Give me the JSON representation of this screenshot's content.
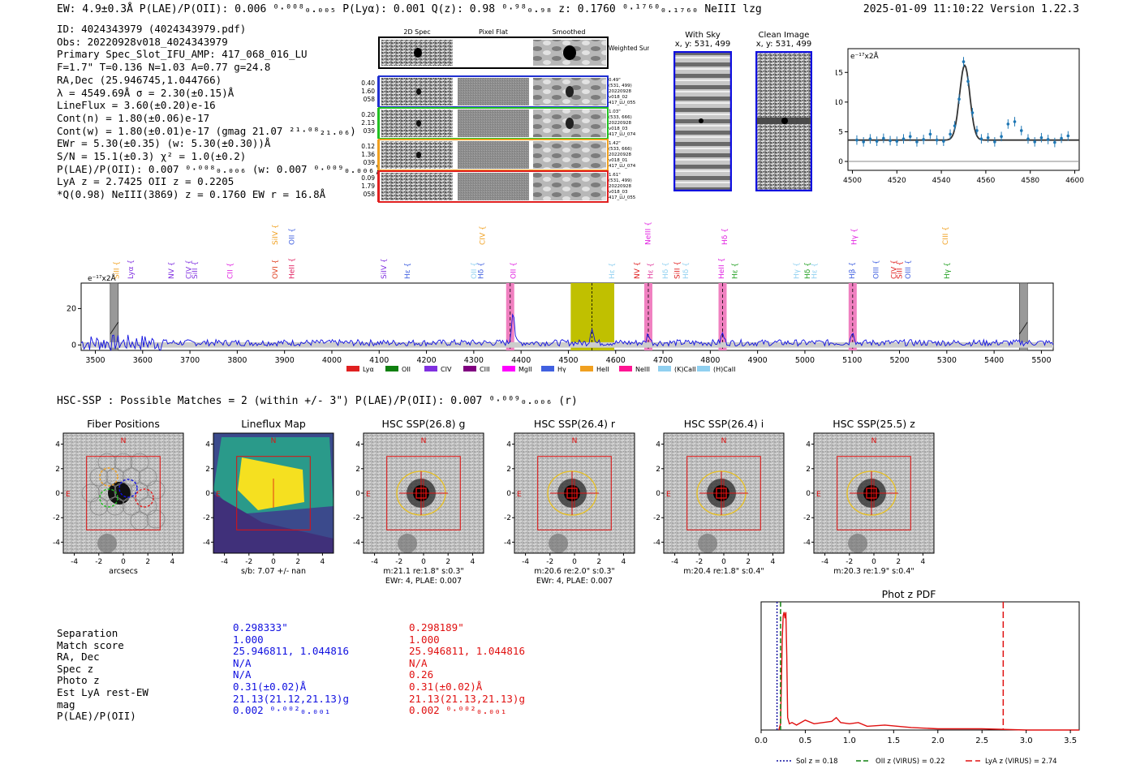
{
  "header": {
    "left": "EW: 4.9±0.3Å  P(LAE)/P(OII): 0.006 ⁰·⁰⁰⁸₀.₀₀₅  P(Lyα): 0.001  Q(z): 0.98 ⁰·⁹⁸₀.₉₈  z: 0.1760 ⁰·¹⁷⁶⁰₀.₁₇₆₀ NeIII  lzg",
    "right": "2025-01-09 11:10:22  Version 1.22.3"
  },
  "info": [
    "ID: 4024343979 (4024343979.pdf)",
    "Obs: 20220928v018_4024343979",
    "Primary Spec_Slot_IFU_AMP: 417_068_016_LU",
    "F=1.7\"  T=0.136  N=1.03  A=0.77  g=24.8",
    "RA,Dec (25.946745,1.044766)",
    "λ = 4549.69Å  σ = 2.30(±0.15)Å",
    "LineFlux = 3.60(±0.20)e-16",
    "Cont(n) = 1.80(±0.06)e-17",
    "Cont(w) = 1.80(±0.01)e-17 (gmag 21.07 ²¹·⁰⁸₂₁.₀₆)",
    "EWr = 5.30(±0.35) (w: 5.30(±0.30))Å",
    "S/N = 15.1(±0.3)  χ² = 1.0(±0.2)",
    "P(LAE)/P(OII): 0.007 ⁰·⁰⁰⁸₀.₀₀₆ (w: 0.007 ⁰·⁰⁰⁹₀.₀₀₆)",
    "LyA z = 2.7425  OII z = 0.2205",
    "*Q(0.98) NeIII(3869) z = 0.1760  EW r = 16.8Å"
  ],
  "cutouts": {
    "headers": [
      "2D Spec",
      "Pixel Flat",
      "Smoothed"
    ],
    "weighted_label": "Weighted Sum",
    "rows": [
      {
        "stats": [
          "0.40",
          "1.60",
          "058"
        ],
        "meta": [
          "0.49\"",
          "(531, 499)",
          "20220928",
          "v018_02",
          "417_LU_055"
        ],
        "color": "#2030d0"
      },
      {
        "stats": [
          "0.20",
          "2.13",
          "039"
        ],
        "meta": [
          "1.03\"",
          "(533, 666)",
          "20220928",
          "v018_03",
          "417_LU_074"
        ],
        "color": "#22c022"
      },
      {
        "stats": [
          "0.12",
          "1.36",
          "039"
        ],
        "meta": [
          "1.42\"",
          "(533, 666)",
          "20220928",
          "v018_01",
          "417_LU_074"
        ],
        "color": "#f0a020"
      },
      {
        "stats": [
          "0.09",
          "1.79",
          "058"
        ],
        "meta": [
          "1.61\"",
          "(531, 499)",
          "20220928",
          "v018_03",
          "417_LU_055"
        ],
        "color": "#e02020"
      }
    ]
  },
  "sky": {
    "with_sky_title": "With Sky",
    "with_sky_coords": "x, y: 531, 499",
    "clean_title": "Clean Image",
    "clean_coords": "x, y: 531, 499"
  },
  "zoom_chart": {
    "type": "line",
    "title": "",
    "ylabel": "e⁻¹⁷x2Å",
    "xlim": [
      4498,
      4602
    ],
    "ylim": [
      -1.5,
      19
    ],
    "xticks": [
      4500,
      4520,
      4540,
      4560,
      4580,
      4600
    ],
    "yticks": [
      0,
      5,
      10,
      15
    ],
    "data_x": [
      4502,
      4505,
      4508,
      4511,
      4514,
      4517,
      4520,
      4523,
      4526,
      4529,
      4532,
      4535,
      4538,
      4541,
      4544,
      4546,
      4548,
      4550,
      4552,
      4554,
      4556,
      4558,
      4561,
      4564,
      4567,
      4570,
      4573,
      4576,
      4579,
      4582,
      4585,
      4588,
      4591,
      4594,
      4597
    ],
    "data_y": [
      3.6,
      3.3,
      3.8,
      3.4,
      3.9,
      3.5,
      3.4,
      3.8,
      4.2,
      3.3,
      3.7,
      4.6,
      3.6,
      3.4,
      4.6,
      6.0,
      10.5,
      16.8,
      13.5,
      8.2,
      5.2,
      3.8,
      4.0,
      3.3,
      4.2,
      6.3,
      6.7,
      5.2,
      3.8,
      3.3,
      4.0,
      3.7,
      3.2,
      3.9,
      4.3
    ],
    "fit_continuum": 3.6,
    "fit_peak": 16.2,
    "fit_center": 4550.5,
    "fit_sigma": 2.3
  },
  "spectrum": {
    "type": "line",
    "ylabel": "e⁻¹⁷x2Å",
    "xlim": [
      3470,
      5525
    ],
    "ylim": [
      -3,
      34
    ],
    "xticks": [
      3500,
      3600,
      3700,
      3800,
      3900,
      4000,
      4100,
      4200,
      4300,
      4400,
      4500,
      4600,
      4700,
      4800,
      4900,
      5000,
      5100,
      5200,
      5300,
      5400,
      5500
    ],
    "yticks": [
      0,
      20
    ],
    "peaks": [
      {
        "x": 4383,
        "h": 18
      },
      {
        "x": 4550,
        "h": 9
      },
      {
        "x": 4669,
        "h": 5
      },
      {
        "x": 4826,
        "h": 5
      },
      {
        "x": 5101,
        "h": 7
      }
    ],
    "highlight_bands": [
      4377,
      4669,
      4826,
      5101
    ],
    "yellow_band": [
      4505,
      4597
    ],
    "hatched_bands": [
      3540,
      5462
    ],
    "line_labels": [
      {
        "x": 3545,
        "t": "SiII",
        "c": "#f0a020",
        "row": 2
      },
      {
        "x": 3575,
        "t": "Lyα",
        "c": "#8030e0",
        "row": 2
      },
      {
        "x": 3660,
        "t": "NV",
        "c": "#8030e0",
        "row": 2
      },
      {
        "x": 3697,
        "t": "CIV",
        "c": "#8030e0",
        "row": 2
      },
      {
        "x": 3710,
        "t": "SiII",
        "c": "#8030e0",
        "row": 2
      },
      {
        "x": 3785,
        "t": "CII",
        "c": "#e020e0",
        "row": 2
      },
      {
        "x": 3880,
        "t": "OVI",
        "c": "#e04020",
        "row": 2
      },
      {
        "x": 3880,
        "t": "SiIV",
        "c": "#f0a020",
        "row": 1
      },
      {
        "x": 3915,
        "t": "HeII",
        "c": "#e02060",
        "row": 2
      },
      {
        "x": 3915,
        "t": "OII",
        "c": "#4060e0",
        "row": 1
      },
      {
        "x": 4110,
        "t": "SiIV",
        "c": "#8030e0",
        "row": 2
      },
      {
        "x": 4160,
        "t": "Hε",
        "c": "#4060e0",
        "row": 2
      },
      {
        "x": 4300,
        "t": "OII",
        "c": "#90d0f0",
        "row": 2
      },
      {
        "x": 4315,
        "t": "Hδ",
        "c": "#4060e0",
        "row": 2
      },
      {
        "x": 4318,
        "t": "CIV",
        "c": "#f0a020",
        "row": 1
      },
      {
        "x": 4383,
        "t": "OII",
        "c": "#e020e0",
        "row": 2
      },
      {
        "x": 4592,
        "t": "Hε",
        "c": "#90d0f0",
        "row": 2
      },
      {
        "x": 4645,
        "t": "NV",
        "c": "#e02020",
        "row": 2
      },
      {
        "x": 4668,
        "t": "NeIII",
        "c": "#e020e0",
        "row": 1
      },
      {
        "x": 4673,
        "t": "Hε",
        "c": "#e040a0",
        "row": 2
      },
      {
        "x": 4705,
        "t": "Hδ",
        "c": "#90d0f0",
        "row": 2
      },
      {
        "x": 4730,
        "t": "SiII",
        "c": "#e02020",
        "row": 2
      },
      {
        "x": 4748,
        "t": "Hδ",
        "c": "#90d0f0",
        "row": 2
      },
      {
        "x": 4823,
        "t": "HeII",
        "c": "#e020e0",
        "row": 2
      },
      {
        "x": 4830,
        "t": "Hδ",
        "c": "#e020e0",
        "row": 1
      },
      {
        "x": 4852,
        "t": "Hε",
        "c": "#22a022",
        "row": 2
      },
      {
        "x": 4982,
        "t": "Hγ",
        "c": "#90d0f0",
        "row": 2
      },
      {
        "x": 5005,
        "t": "Hδ",
        "c": "#22a022",
        "row": 2
      },
      {
        "x": 5020,
        "t": "Hε",
        "c": "#90d0f0",
        "row": 2
      },
      {
        "x": 5100,
        "t": "Hβ",
        "c": "#4060e0",
        "row": 2
      },
      {
        "x": 5104,
        "t": "Hγ",
        "c": "#e020e0",
        "row": 1
      },
      {
        "x": 5150,
        "t": "OIII",
        "c": "#4060e0",
        "row": 2
      },
      {
        "x": 5188,
        "t": "CIV",
        "c": "#e02020",
        "row": 2
      },
      {
        "x": 5200,
        "t": "SiII",
        "c": "#e02020",
        "row": 2
      },
      {
        "x": 5218,
        "t": "OIII",
        "c": "#4060e0",
        "row": 2
      },
      {
        "x": 5297,
        "t": "CIII",
        "c": "#f0a020",
        "row": 1
      },
      {
        "x": 5300,
        "t": "Hγ",
        "c": "#22a022",
        "row": 2
      }
    ],
    "legend": [
      {
        "t": "Lyα",
        "c": "#e02020"
      },
      {
        "t": "OII",
        "c": "#108010"
      },
      {
        "t": "CIV",
        "c": "#8030e0"
      },
      {
        "t": "CIII",
        "c": "#800080"
      },
      {
        "t": "MgII",
        "c": "#ff00ff"
      },
      {
        "t": "Hγ",
        "c": "#4060e0"
      },
      {
        "t": "HeII",
        "c": "#f0a020"
      },
      {
        "t": "NeIII",
        "c": "#ff1493"
      },
      {
        "t": "(K)CaII",
        "c": "#90d0f0"
      },
      {
        "t": "(H)CaII",
        "c": "#90d0f0"
      }
    ]
  },
  "hsc_header": "HSC-SSP : Possible Matches = 2 (within +/- 3\")  P(LAE)/P(OII): 0.007 ⁰·⁰⁰⁹₀.₀₀₆ (r)",
  "panels": [
    {
      "title": "Fiber Positions",
      "kind": "fiber",
      "cap1": "arcsecs",
      "cap2": ""
    },
    {
      "title": "Lineflux Map",
      "kind": "lineflux",
      "cap1": "s/b: 7.07 +/- nan",
      "cap2": ""
    },
    {
      "title": "HSC SSP(26.8) g",
      "kind": "hsc",
      "cap1": "m:21.1  re:1.8\"  s:0.3\"",
      "cap2": "EWr: 4, PLAE: 0.007"
    },
    {
      "title": "HSC SSP(26.4) r",
      "kind": "hsc",
      "cap1": "m:20.6  re:2.0\"  s:0.3\"",
      "cap2": "EWr: 4, PLAE: 0.007"
    },
    {
      "title": "HSC SSP(26.4) i",
      "kind": "hsc",
      "cap1": "m:20.4  re:1.8\"  s:0.4\"",
      "cap2": ""
    },
    {
      "title": "HSC SSP(25.5) z",
      "kind": "hsc",
      "cap1": "m:20.3  re:1.9\"  s:0.4\"",
      "cap2": ""
    }
  ],
  "panel_axis": {
    "ticks": [
      "-4",
      "-2",
      "0",
      "2",
      "4"
    ],
    "north": "N",
    "east": "E"
  },
  "table": {
    "labels": [
      "Separation",
      "Match score",
      "RA, Dec",
      "Spec z",
      "Photo z",
      "Est LyA rest-EW",
      "mag",
      "P(LAE)/P(OII)"
    ],
    "col_blue": [
      "0.298333\"",
      "1.000",
      "25.946811, 1.044816",
      "N/A",
      "N/A",
      "0.31(±0.02)Å",
      "21.13(21.12,21.13)g",
      "0.002 ⁰·⁰⁰²₀.₀₀₁"
    ],
    "col_red": [
      "0.298189\"",
      "1.000",
      "25.946811, 1.044816",
      "N/A",
      "0.26",
      "0.31(±0.02)Å",
      "21.13(21.13,21.13)g",
      "0.002 ⁰·⁰⁰²₀.₀₀₁"
    ],
    "blue_color": "#1010e0",
    "red_color": "#e01010"
  },
  "pdf_chart": {
    "type": "line",
    "title": "Phot z PDF",
    "xlim": [
      0,
      3.6
    ],
    "xticks": [
      0.0,
      0.5,
      1.0,
      1.5,
      2.0,
      2.5,
      3.0,
      3.5
    ],
    "x": [
      0.2,
      0.22,
      0.24,
      0.25,
      0.26,
      0.27,
      0.28,
      0.29,
      0.3,
      0.32,
      0.35,
      0.4,
      0.5,
      0.6,
      0.7,
      0.8,
      0.85,
      0.9,
      1.0,
      1.1,
      1.2,
      1.4,
      1.7,
      2.0,
      2.5,
      3.0,
      3.6
    ],
    "y": [
      0.0,
      0.05,
      0.75,
      0.92,
      0.95,
      0.9,
      0.95,
      0.6,
      0.1,
      0.05,
      0.06,
      0.04,
      0.08,
      0.05,
      0.06,
      0.07,
      0.1,
      0.06,
      0.05,
      0.06,
      0.03,
      0.04,
      0.02,
      0.01,
      0.01,
      0.0,
      0.0
    ],
    "vlines": [
      {
        "x": 0.18,
        "label": "Sol z = 0.18",
        "color": "#1010a0",
        "dash": "2,2"
      },
      {
        "x": 0.22,
        "label": "OII z (VIRUS) = 0.22",
        "color": "#108010",
        "dash": "6,3"
      },
      {
        "x": 2.74,
        "label": "LyA z (VIRUS) = 2.74",
        "color": "#e01010",
        "dash": "8,4"
      }
    ]
  }
}
